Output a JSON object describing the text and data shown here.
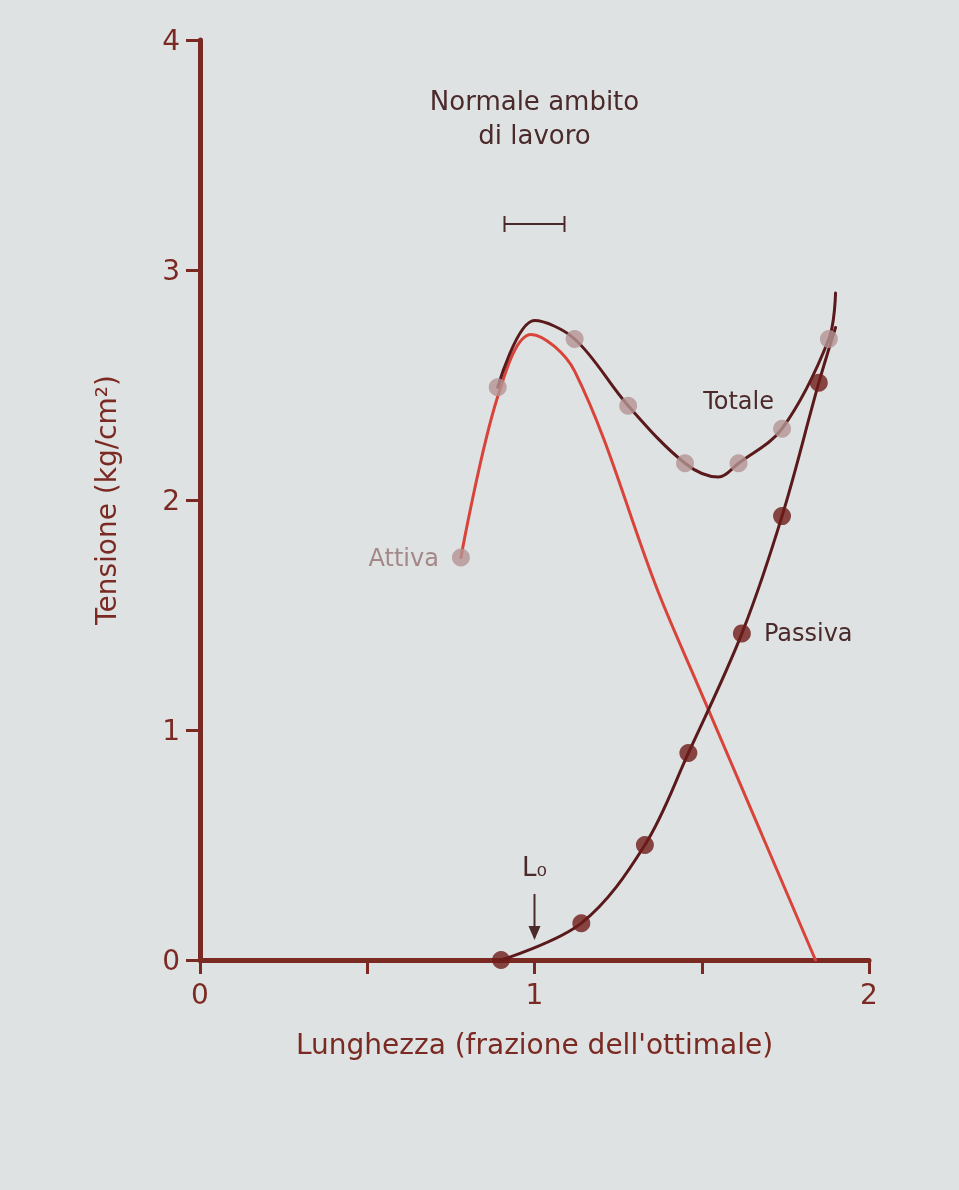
{
  "chart_data": {
    "type": "line",
    "xlabel": "Lunghezza (frazione dell'ottimale)",
    "ylabel": "Tensione (kg/cm²)",
    "xlim": [
      0,
      2
    ],
    "xticks": [
      0,
      {
        "value": 0.5,
        "label": null
      },
      1,
      {
        "value": 1.5,
        "label": null
      },
      2
    ],
    "ylim": [
      0,
      4
    ],
    "yticks": [
      0,
      1,
      2,
      3,
      4
    ],
    "grid": false,
    "legend": false,
    "marker": "none",
    "line_style": "solid",
    "series": [
      {
        "name": "Attiva",
        "color": "#d9443a",
        "x": [
          0.78,
          0.89,
          0.99,
          1.12,
          1.37,
          1.49,
          1.84
        ],
        "values": [
          1.75,
          2.45,
          2.72,
          2.56,
          1.6,
          1.19,
          0
        ]
      },
      {
        "name": "Totale",
        "color": "#5a1a1c",
        "x": [
          0.89,
          1.0,
          1.12,
          1.28,
          1.45,
          1.55,
          1.61,
          1.74,
          1.88,
          1.9
        ],
        "values": [
          2.49,
          2.78,
          2.7,
          2.41,
          2.16,
          2.1,
          2.16,
          2.31,
          2.7,
          2.9
        ]
      },
      {
        "name": "Passiva",
        "color": "#5a1a1c",
        "x": [
          0.9,
          1.14,
          1.33,
          1.46,
          1.62,
          1.74,
          1.85,
          1.9
        ],
        "values": [
          0,
          0.16,
          0.5,
          0.9,
          1.42,
          1.93,
          2.51,
          2.75
        ]
      },
      {
        "type": "scatter",
        "marker": "circle",
        "color": "#b49494",
        "x": [
          0.78,
          0.89,
          1.12,
          1.28,
          1.45,
          1.61,
          1.74,
          1.88
        ],
        "values": [
          1.75,
          2.49,
          2.7,
          2.41,
          2.16,
          2.16,
          2.31,
          2.7
        ]
      },
      {
        "type": "scatter",
        "marker": "circle",
        "color": "#6e1c18",
        "x": [
          0.9,
          1.14,
          1.33,
          1.46,
          1.62,
          1.74,
          1.85
        ],
        "values": [
          0,
          0.16,
          0.5,
          0.9,
          1.42,
          1.93,
          2.51
        ]
      }
    ],
    "annotations": [
      "Normale ambito di lavoro",
      "L₀"
    ]
  }
}
